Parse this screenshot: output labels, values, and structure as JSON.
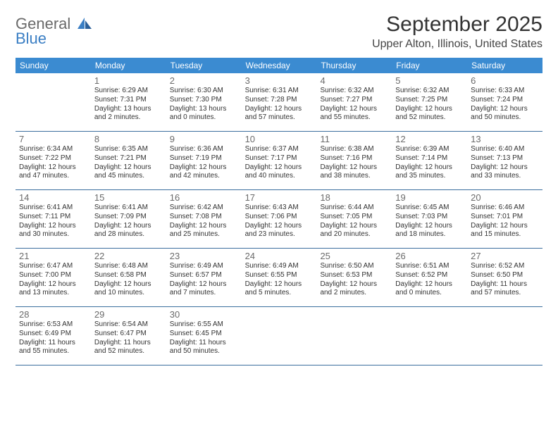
{
  "brand": {
    "part1": "General",
    "part2": "Blue"
  },
  "header": {
    "title": "September 2025",
    "location": "Upper Alton, Illinois, United States"
  },
  "colors": {
    "dow_bg": "#3b8bd1",
    "dow_fg": "#ffffff",
    "week_border": "#3b6e9e",
    "text": "#333333",
    "daynum": "#6b6b6b",
    "logo_gray": "#6a6a6a",
    "logo_blue": "#3b7fc4"
  },
  "dow": [
    "Sunday",
    "Monday",
    "Tuesday",
    "Wednesday",
    "Thursday",
    "Friday",
    "Saturday"
  ],
  "weeks": [
    [
      null,
      {
        "d": "1",
        "sr": "Sunrise: 6:29 AM",
        "ss": "Sunset: 7:31 PM",
        "dl1": "Daylight: 13 hours",
        "dl2": "and 2 minutes."
      },
      {
        "d": "2",
        "sr": "Sunrise: 6:30 AM",
        "ss": "Sunset: 7:30 PM",
        "dl1": "Daylight: 13 hours",
        "dl2": "and 0 minutes."
      },
      {
        "d": "3",
        "sr": "Sunrise: 6:31 AM",
        "ss": "Sunset: 7:28 PM",
        "dl1": "Daylight: 12 hours",
        "dl2": "and 57 minutes."
      },
      {
        "d": "4",
        "sr": "Sunrise: 6:32 AM",
        "ss": "Sunset: 7:27 PM",
        "dl1": "Daylight: 12 hours",
        "dl2": "and 55 minutes."
      },
      {
        "d": "5",
        "sr": "Sunrise: 6:32 AM",
        "ss": "Sunset: 7:25 PM",
        "dl1": "Daylight: 12 hours",
        "dl2": "and 52 minutes."
      },
      {
        "d": "6",
        "sr": "Sunrise: 6:33 AM",
        "ss": "Sunset: 7:24 PM",
        "dl1": "Daylight: 12 hours",
        "dl2": "and 50 minutes."
      }
    ],
    [
      {
        "d": "7",
        "sr": "Sunrise: 6:34 AM",
        "ss": "Sunset: 7:22 PM",
        "dl1": "Daylight: 12 hours",
        "dl2": "and 47 minutes."
      },
      {
        "d": "8",
        "sr": "Sunrise: 6:35 AM",
        "ss": "Sunset: 7:21 PM",
        "dl1": "Daylight: 12 hours",
        "dl2": "and 45 minutes."
      },
      {
        "d": "9",
        "sr": "Sunrise: 6:36 AM",
        "ss": "Sunset: 7:19 PM",
        "dl1": "Daylight: 12 hours",
        "dl2": "and 42 minutes."
      },
      {
        "d": "10",
        "sr": "Sunrise: 6:37 AM",
        "ss": "Sunset: 7:17 PM",
        "dl1": "Daylight: 12 hours",
        "dl2": "and 40 minutes."
      },
      {
        "d": "11",
        "sr": "Sunrise: 6:38 AM",
        "ss": "Sunset: 7:16 PM",
        "dl1": "Daylight: 12 hours",
        "dl2": "and 38 minutes."
      },
      {
        "d": "12",
        "sr": "Sunrise: 6:39 AM",
        "ss": "Sunset: 7:14 PM",
        "dl1": "Daylight: 12 hours",
        "dl2": "and 35 minutes."
      },
      {
        "d": "13",
        "sr": "Sunrise: 6:40 AM",
        "ss": "Sunset: 7:13 PM",
        "dl1": "Daylight: 12 hours",
        "dl2": "and 33 minutes."
      }
    ],
    [
      {
        "d": "14",
        "sr": "Sunrise: 6:41 AM",
        "ss": "Sunset: 7:11 PM",
        "dl1": "Daylight: 12 hours",
        "dl2": "and 30 minutes."
      },
      {
        "d": "15",
        "sr": "Sunrise: 6:41 AM",
        "ss": "Sunset: 7:09 PM",
        "dl1": "Daylight: 12 hours",
        "dl2": "and 28 minutes."
      },
      {
        "d": "16",
        "sr": "Sunrise: 6:42 AM",
        "ss": "Sunset: 7:08 PM",
        "dl1": "Daylight: 12 hours",
        "dl2": "and 25 minutes."
      },
      {
        "d": "17",
        "sr": "Sunrise: 6:43 AM",
        "ss": "Sunset: 7:06 PM",
        "dl1": "Daylight: 12 hours",
        "dl2": "and 23 minutes."
      },
      {
        "d": "18",
        "sr": "Sunrise: 6:44 AM",
        "ss": "Sunset: 7:05 PM",
        "dl1": "Daylight: 12 hours",
        "dl2": "and 20 minutes."
      },
      {
        "d": "19",
        "sr": "Sunrise: 6:45 AM",
        "ss": "Sunset: 7:03 PM",
        "dl1": "Daylight: 12 hours",
        "dl2": "and 18 minutes."
      },
      {
        "d": "20",
        "sr": "Sunrise: 6:46 AM",
        "ss": "Sunset: 7:01 PM",
        "dl1": "Daylight: 12 hours",
        "dl2": "and 15 minutes."
      }
    ],
    [
      {
        "d": "21",
        "sr": "Sunrise: 6:47 AM",
        "ss": "Sunset: 7:00 PM",
        "dl1": "Daylight: 12 hours",
        "dl2": "and 13 minutes."
      },
      {
        "d": "22",
        "sr": "Sunrise: 6:48 AM",
        "ss": "Sunset: 6:58 PM",
        "dl1": "Daylight: 12 hours",
        "dl2": "and 10 minutes."
      },
      {
        "d": "23",
        "sr": "Sunrise: 6:49 AM",
        "ss": "Sunset: 6:57 PM",
        "dl1": "Daylight: 12 hours",
        "dl2": "and 7 minutes."
      },
      {
        "d": "24",
        "sr": "Sunrise: 6:49 AM",
        "ss": "Sunset: 6:55 PM",
        "dl1": "Daylight: 12 hours",
        "dl2": "and 5 minutes."
      },
      {
        "d": "25",
        "sr": "Sunrise: 6:50 AM",
        "ss": "Sunset: 6:53 PM",
        "dl1": "Daylight: 12 hours",
        "dl2": "and 2 minutes."
      },
      {
        "d": "26",
        "sr": "Sunrise: 6:51 AM",
        "ss": "Sunset: 6:52 PM",
        "dl1": "Daylight: 12 hours",
        "dl2": "and 0 minutes."
      },
      {
        "d": "27",
        "sr": "Sunrise: 6:52 AM",
        "ss": "Sunset: 6:50 PM",
        "dl1": "Daylight: 11 hours",
        "dl2": "and 57 minutes."
      }
    ],
    [
      {
        "d": "28",
        "sr": "Sunrise: 6:53 AM",
        "ss": "Sunset: 6:49 PM",
        "dl1": "Daylight: 11 hours",
        "dl2": "and 55 minutes."
      },
      {
        "d": "29",
        "sr": "Sunrise: 6:54 AM",
        "ss": "Sunset: 6:47 PM",
        "dl1": "Daylight: 11 hours",
        "dl2": "and 52 minutes."
      },
      {
        "d": "30",
        "sr": "Sunrise: 6:55 AM",
        "ss": "Sunset: 6:45 PM",
        "dl1": "Daylight: 11 hours",
        "dl2": "and 50 minutes."
      },
      null,
      null,
      null,
      null
    ]
  ]
}
